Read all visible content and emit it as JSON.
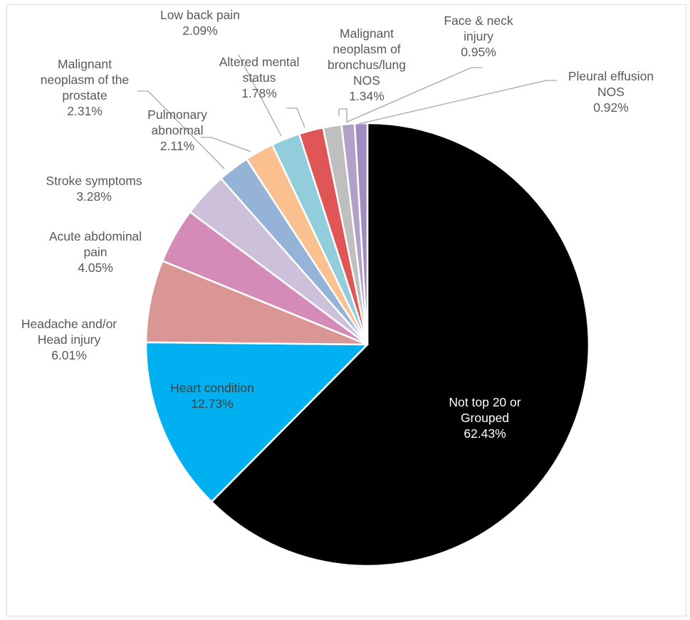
{
  "chart_data": {
    "type": "pie",
    "title": "",
    "start_angle_deg": 0,
    "direction": "clockwise",
    "slices": [
      {
        "label_lines": [
          "Not top 20 or",
          "Grouped"
        ],
        "value": 62.43,
        "value_label": "62.43%",
        "color": "#000000"
      },
      {
        "label_lines": [
          "Heart condition"
        ],
        "value": 12.73,
        "value_label": "12.73%",
        "color": "#00b0f0"
      },
      {
        "label_lines": [
          "Headache and/or",
          "Head injury"
        ],
        "value": 6.01,
        "value_label": "6.01%",
        "color": "#da9694"
      },
      {
        "label_lines": [
          "Acute abdominal",
          "pain"
        ],
        "value": 4.05,
        "value_label": "4.05%",
        "color": "#d58bb8"
      },
      {
        "label_lines": [
          "Stroke symptoms"
        ],
        "value": 3.28,
        "value_label": "3.28%",
        "color": "#ccc0da"
      },
      {
        "label_lines": [
          "Malignant",
          "neoplasm of the",
          "prostate"
        ],
        "value": 2.31,
        "value_label": "2.31%",
        "color": "#95b3d7"
      },
      {
        "label_lines": [
          "Pulmonary",
          "abnormal"
        ],
        "value": 2.11,
        "value_label": "2.11%",
        "color": "#fac090"
      },
      {
        "label_lines": [
          "Low back pain"
        ],
        "value": 2.09,
        "value_label": "2.09%",
        "color": "#92cddc"
      },
      {
        "label_lines": [
          "Altered mental",
          "status"
        ],
        "value": 1.78,
        "value_label": "1.78%",
        "color": "#e05555"
      },
      {
        "label_lines": [
          "Malignant",
          "neoplasm of",
          "bronchus/lung",
          "NOS"
        ],
        "value": 1.34,
        "value_label": "1.34%",
        "color": "#bfbfbf"
      },
      {
        "label_lines": [
          "Face & neck",
          "injury"
        ],
        "value": 0.95,
        "value_label": "0.95%",
        "color": "#b1a0c7"
      },
      {
        "label_lines": [
          "Pleural effusion",
          "NOS"
        ],
        "value": 0.92,
        "value_label": "0.92%",
        "color": "#a08cbf"
      }
    ]
  }
}
